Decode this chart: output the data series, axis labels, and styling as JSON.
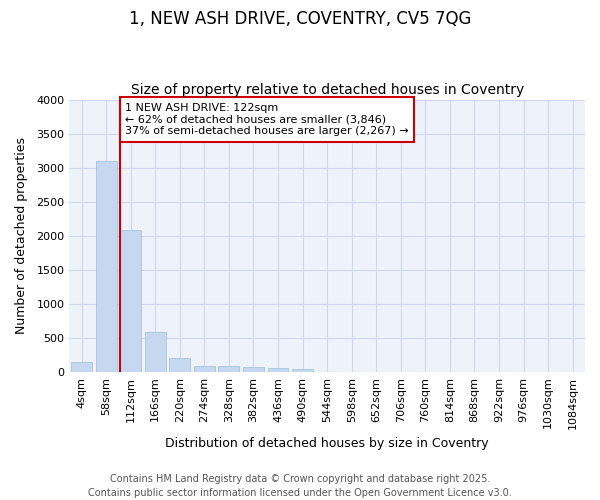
{
  "title_line1": "1, NEW ASH DRIVE, COVENTRY, CV5 7QG",
  "title_line2": "Size of property relative to detached houses in Coventry",
  "xlabel": "Distribution of detached houses by size in Coventry",
  "ylabel": "Number of detached properties",
  "categories": [
    "4sqm",
    "58sqm",
    "112sqm",
    "166sqm",
    "220sqm",
    "274sqm",
    "328sqm",
    "382sqm",
    "436sqm",
    "490sqm",
    "544sqm",
    "598sqm",
    "652sqm",
    "706sqm",
    "760sqm",
    "814sqm",
    "868sqm",
    "922sqm",
    "976sqm",
    "1030sqm",
    "1084sqm"
  ],
  "values": [
    150,
    3100,
    2080,
    580,
    200,
    90,
    80,
    70,
    55,
    45,
    0,
    0,
    0,
    0,
    0,
    0,
    0,
    0,
    0,
    0,
    0
  ],
  "bar_color": "#c5d8f0",
  "bar_edge_color": "#8ab4d8",
  "vline_color": "#cc0000",
  "annotation_text": "1 NEW ASH DRIVE: 122sqm\n← 62% of detached houses are smaller (3,846)\n37% of semi-detached houses are larger (2,267) →",
  "ylim": [
    0,
    4000
  ],
  "yticks": [
    0,
    500,
    1000,
    1500,
    2000,
    2500,
    3000,
    3500,
    4000
  ],
  "background_color": "#ffffff",
  "plot_bg_color": "#eef2fa",
  "grid_color": "#d0d8ee",
  "footer_text": "Contains HM Land Registry data © Crown copyright and database right 2025.\nContains public sector information licensed under the Open Government Licence v3.0.",
  "title_fontsize": 12,
  "subtitle_fontsize": 10,
  "axis_label_fontsize": 9,
  "tick_fontsize": 8,
  "footer_fontsize": 7,
  "ann_fontsize": 8
}
